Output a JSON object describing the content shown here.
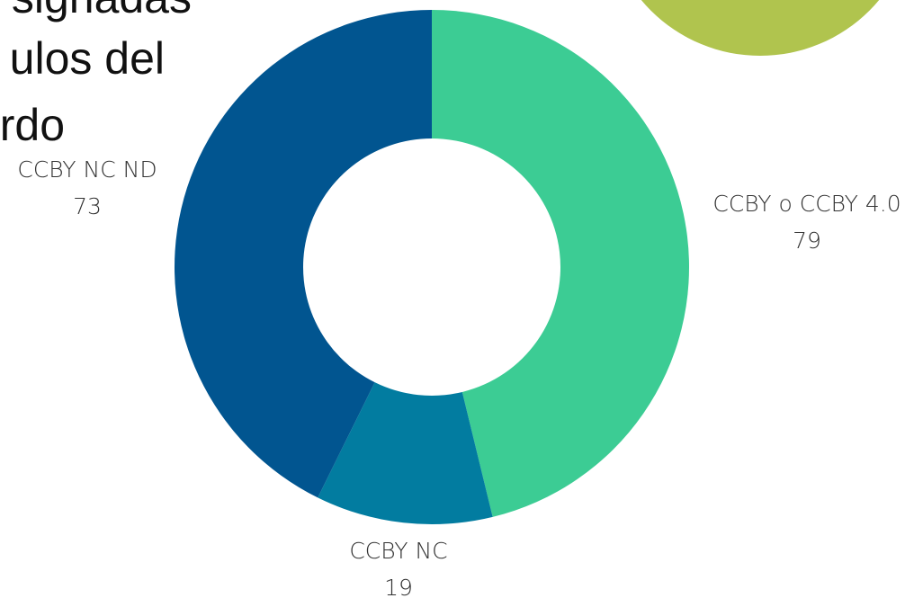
{
  "chart_data": {
    "type": "donut",
    "title_lines": [
      "signadas",
      "ulos del",
      "rdo"
    ],
    "categories": [
      "CCBY o CCBY 4.0",
      "CCBY NC",
      "CCBY NC ND"
    ],
    "values": [
      79,
      19,
      73
    ],
    "colors": [
      "#3ccc94",
      "#027ca0",
      "#015590"
    ]
  }
}
